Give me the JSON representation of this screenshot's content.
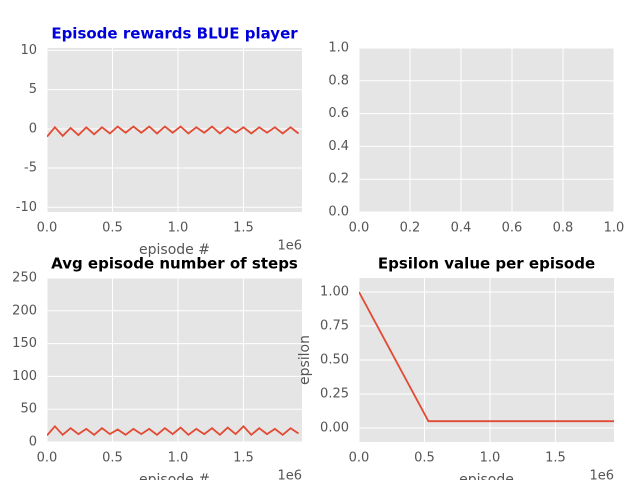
{
  "chart_data": [
    {
      "type": "line",
      "title": "Episode rewards BLUE player",
      "title_color": "#0000dd",
      "x_label": "episode #",
      "x_offset_label": "1e6",
      "xlim": [
        0,
        1947000
      ],
      "xticks": [
        {
          "value": 0,
          "label": "0.0"
        },
        {
          "value": 500000,
          "label": "0.5"
        },
        {
          "value": 1000000,
          "label": "1.0"
        },
        {
          "value": 1500000,
          "label": "1.5"
        }
      ],
      "ylim": [
        -10.6,
        10.3
      ],
      "yticks": [
        -10,
        -5,
        0,
        5,
        10
      ],
      "grid": true,
      "x": [
        0,
        60000,
        120000,
        180000,
        240000,
        300000,
        360000,
        420000,
        480000,
        540000,
        600000,
        660000,
        720000,
        780000,
        840000,
        900000,
        960000,
        1020000,
        1080000,
        1140000,
        1200000,
        1260000,
        1320000,
        1380000,
        1440000,
        1500000,
        1560000,
        1620000,
        1680000,
        1740000,
        1800000,
        1860000,
        1920000
      ],
      "series": [
        {
          "color": "#e24a33",
          "values": [
            -1.0,
            0.2,
            -0.9,
            0.1,
            -0.8,
            0.2,
            -0.7,
            0.2,
            -0.6,
            0.3,
            -0.5,
            0.3,
            -0.5,
            0.3,
            -0.6,
            0.3,
            -0.5,
            0.3,
            -0.6,
            0.2,
            -0.5,
            0.3,
            -0.6,
            0.2,
            -0.5,
            0.2,
            -0.6,
            0.2,
            -0.5,
            0.2,
            -0.6,
            0.2,
            -0.6
          ]
        }
      ]
    },
    {
      "type": "line",
      "xlim": [
        0,
        1
      ],
      "xticks": [
        {
          "value": 0,
          "label": "0.0"
        },
        0.2,
        0.4,
        0.6,
        0.8,
        {
          "value": 1,
          "label": "1.0"
        }
      ],
      "ylim": [
        0,
        1
      ],
      "yticks": [
        {
          "value": 0,
          "label": "0.0"
        },
        0.2,
        0.4,
        0.6,
        0.8,
        {
          "value": 1,
          "label": "1.0"
        }
      ],
      "grid": true
    },
    {
      "type": "line",
      "title": "Avg episode number of steps",
      "title_color": "#000000",
      "x_label": "episode #",
      "x_offset_label": "1e6",
      "xlim": [
        0,
        1947000
      ],
      "xticks": [
        {
          "value": 0,
          "label": "0.0"
        },
        {
          "value": 500000,
          "label": "0.5"
        },
        {
          "value": 1000000,
          "label": "1.0"
        },
        {
          "value": 1500000,
          "label": "1.5"
        }
      ],
      "ylim": [
        0,
        250
      ],
      "yticks": [
        0,
        50,
        100,
        150,
        200,
        250
      ],
      "grid": true,
      "x": [
        0,
        60000,
        120000,
        180000,
        240000,
        300000,
        360000,
        420000,
        480000,
        540000,
        600000,
        660000,
        720000,
        780000,
        840000,
        900000,
        960000,
        1020000,
        1080000,
        1140000,
        1200000,
        1260000,
        1320000,
        1380000,
        1440000,
        1500000,
        1560000,
        1620000,
        1680000,
        1740000,
        1800000,
        1860000,
        1920000
      ],
      "series": [
        {
          "color": "#e24a33",
          "values": [
            10,
            24,
            11,
            21,
            12,
            20,
            11,
            21,
            12,
            19,
            11,
            20,
            12,
            20,
            11,
            21,
            12,
            22,
            11,
            20,
            12,
            21,
            11,
            22,
            12,
            24,
            11,
            21,
            12,
            20,
            11,
            21,
            13
          ]
        }
      ]
    },
    {
      "type": "line",
      "title": "Epsilon value per episode",
      "title_color": "#000000",
      "x_label": "episode",
      "y_label": "epsilon",
      "x_offset_label": "1e6",
      "xlim": [
        0,
        1947000
      ],
      "xticks": [
        {
          "value": 0,
          "label": "0.0"
        },
        {
          "value": 500000,
          "label": "0.5"
        },
        {
          "value": 1000000,
          "label": "1.0"
        },
        {
          "value": 1500000,
          "label": "1.5"
        }
      ],
      "ylim": [
        -0.103,
        1.103
      ],
      "yticks": [
        {
          "value": 0,
          "label": "0.00"
        },
        0.25,
        {
          "value": 0.5,
          "label": "0.50"
        },
        0.75,
        {
          "value": 1,
          "label": "1.00"
        }
      ],
      "grid": true,
      "x": [
        0,
        530000,
        1947000
      ],
      "series": [
        {
          "color": "#e24a33",
          "values": [
            1.0,
            0.05,
            0.05
          ]
        }
      ]
    }
  ]
}
